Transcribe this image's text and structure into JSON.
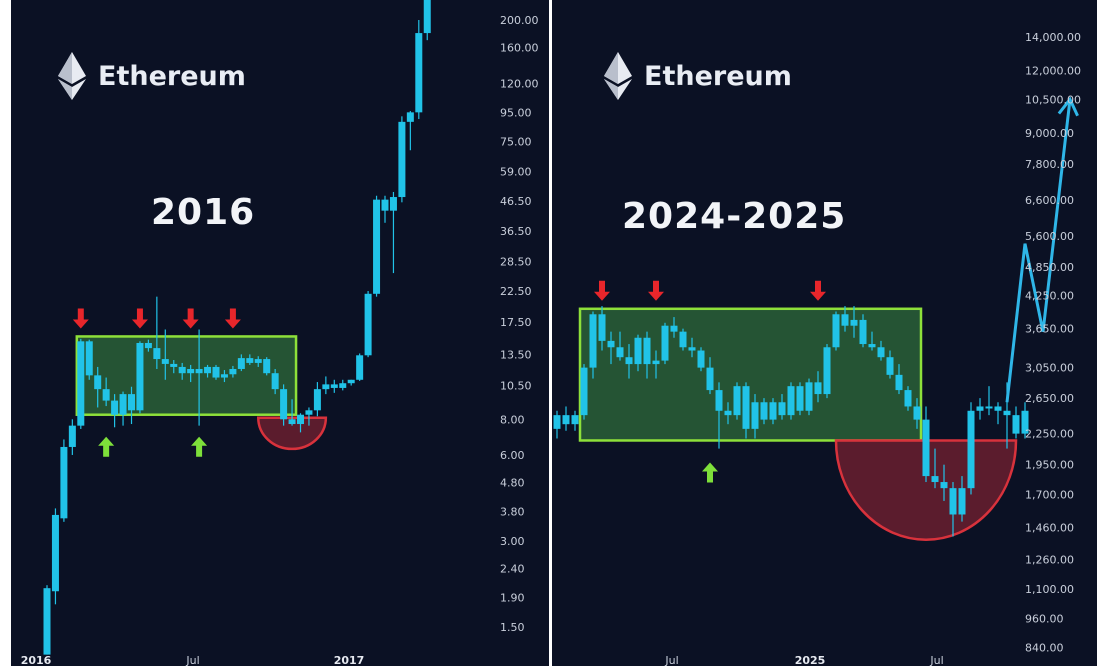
{
  "colors": {
    "background": "#0b1124",
    "candle_up": "#21c3e8",
    "candle_down": "#21c3e8",
    "range_box_fill": "#2f6b3a",
    "range_box_stroke": "#8ee03a",
    "resistance_arrow": "#e8262b",
    "support_arrow": "#7ee03a",
    "cup_fill": "#6a1e2f",
    "cup_stroke": "#d8323c",
    "projection_line": "#2fb6e8"
  },
  "chart_data": [
    {
      "type": "candlestick",
      "title": "2016",
      "brand": "Ethereum",
      "brand_icon": "ethereum-logo-icon",
      "yscale": "log",
      "ylim": [
        1.35,
        235
      ],
      "ytick_labels": [
        "200.00",
        "160.00",
        "120.00",
        "95.00",
        "75.00",
        "59.00",
        "46.50",
        "36.50",
        "28.50",
        "22.50",
        "17.50",
        "13.50",
        "10.50",
        "8.00",
        "6.00",
        "4.80",
        "3.80",
        "3.00",
        "2.40",
        "1.90",
        "1.50"
      ],
      "xtick_labels": [
        "2016",
        "Jul",
        "2017"
      ],
      "xtick_bold": [
        "2016",
        "2017"
      ],
      "candles": [
        {
          "o": 1.2,
          "h": 2.1,
          "l": 1.2,
          "c": 2.05
        },
        {
          "o": 2.0,
          "h": 3.9,
          "l": 1.8,
          "c": 3.7
        },
        {
          "o": 3.6,
          "h": 6.8,
          "l": 3.5,
          "c": 6.4
        },
        {
          "o": 6.4,
          "h": 8.0,
          "l": 6.0,
          "c": 7.6
        },
        {
          "o": 7.6,
          "h": 15.3,
          "l": 7.4,
          "c": 15.0
        },
        {
          "o": 15.0,
          "h": 15.2,
          "l": 11.0,
          "c": 11.4
        },
        {
          "o": 11.4,
          "h": 12.2,
          "l": 8.8,
          "c": 10.2
        },
        {
          "o": 10.2,
          "h": 11.2,
          "l": 8.9,
          "c": 9.3
        },
        {
          "o": 9.3,
          "h": 9.8,
          "l": 7.5,
          "c": 8.3
        },
        {
          "o": 8.3,
          "h": 10.0,
          "l": 7.6,
          "c": 9.8
        },
        {
          "o": 9.8,
          "h": 10.4,
          "l": 7.7,
          "c": 8.6
        },
        {
          "o": 8.6,
          "h": 15.0,
          "l": 8.4,
          "c": 14.8
        },
        {
          "o": 14.8,
          "h": 15.2,
          "l": 13.8,
          "c": 14.2
        },
        {
          "o": 14.2,
          "h": 21.5,
          "l": 12.0,
          "c": 13.0
        },
        {
          "o": 13.0,
          "h": 16.5,
          "l": 11.0,
          "c": 12.5
        },
        {
          "o": 12.5,
          "h": 12.9,
          "l": 11.6,
          "c": 12.2
        },
        {
          "o": 12.2,
          "h": 12.6,
          "l": 11.0,
          "c": 11.6
        },
        {
          "o": 11.6,
          "h": 12.4,
          "l": 10.8,
          "c": 12.0
        },
        {
          "o": 12.0,
          "h": 16.5,
          "l": 7.6,
          "c": 11.6
        },
        {
          "o": 11.6,
          "h": 12.4,
          "l": 11.2,
          "c": 12.2
        },
        {
          "o": 12.2,
          "h": 12.4,
          "l": 11.0,
          "c": 11.2
        },
        {
          "o": 11.2,
          "h": 11.9,
          "l": 10.8,
          "c": 11.5
        },
        {
          "o": 11.5,
          "h": 12.3,
          "l": 11.2,
          "c": 12.0
        },
        {
          "o": 12.0,
          "h": 13.5,
          "l": 11.8,
          "c": 13.1
        },
        {
          "o": 13.1,
          "h": 13.5,
          "l": 12.4,
          "c": 12.6
        },
        {
          "o": 12.6,
          "h": 13.3,
          "l": 12.2,
          "c": 13.0
        },
        {
          "o": 13.0,
          "h": 13.2,
          "l": 11.4,
          "c": 11.6
        },
        {
          "o": 11.6,
          "h": 12.0,
          "l": 9.8,
          "c": 10.2
        },
        {
          "o": 10.2,
          "h": 10.6,
          "l": 7.6,
          "c": 8.0
        },
        {
          "o": 8.0,
          "h": 9.4,
          "l": 7.6,
          "c": 7.7
        },
        {
          "o": 7.7,
          "h": 8.4,
          "l": 7.2,
          "c": 8.3
        },
        {
          "o": 8.3,
          "h": 8.8,
          "l": 7.6,
          "c": 8.6
        },
        {
          "o": 8.6,
          "h": 10.8,
          "l": 8.2,
          "c": 10.2
        },
        {
          "o": 10.2,
          "h": 11.3,
          "l": 9.8,
          "c": 10.6
        },
        {
          "o": 10.6,
          "h": 11.0,
          "l": 9.9,
          "c": 10.3
        },
        {
          "o": 10.3,
          "h": 11.0,
          "l": 10.1,
          "c": 10.7
        },
        {
          "o": 10.7,
          "h": 11.0,
          "l": 10.5,
          "c": 11.0
        },
        {
          "o": 11.0,
          "h": 13.6,
          "l": 10.9,
          "c": 13.4
        },
        {
          "o": 13.4,
          "h": 22.5,
          "l": 13.2,
          "c": 22.0
        },
        {
          "o": 22.0,
          "h": 48.5,
          "l": 21.5,
          "c": 47.0
        },
        {
          "o": 47.0,
          "h": 48.5,
          "l": 39.0,
          "c": 43.0
        },
        {
          "o": 43.0,
          "h": 50.0,
          "l": 26.0,
          "c": 48.0
        },
        {
          "o": 48.0,
          "h": 92.0,
          "l": 46.0,
          "c": 88.0
        },
        {
          "o": 88.0,
          "h": 96.0,
          "l": 70.0,
          "c": 95.0
        },
        {
          "o": 95.0,
          "h": 200.0,
          "l": 90.0,
          "c": 180.0
        },
        {
          "o": 180.0,
          "h": 420.0,
          "l": 170.0,
          "c": 400.0
        }
      ],
      "annotations": {
        "range_box": {
          "x_from": 4,
          "x_to": 29,
          "y_from": 8.3,
          "y_to": 15.6
        },
        "resistance_arrows_at": [
          4,
          11,
          17,
          22
        ],
        "support_arrows_at": [
          7,
          18
        ],
        "cup": {
          "x_from": 25,
          "x_to": 33,
          "top": 8.1,
          "bottom": 6.3
        }
      }
    },
    {
      "type": "candlestick",
      "title": "2024-2025",
      "brand": "Ethereum",
      "brand_icon": "ethereum-logo-icon",
      "yscale": "log",
      "ylim": [
        830,
        16000
      ],
      "ytick_labels": [
        "14,000.00",
        "12,000.00",
        "10,500.00",
        "9,000.00",
        "7,800.00",
        "6,600.00",
        "5,600.00",
        "4,850.00",
        "4,250.00",
        "3,650.00",
        "3,050.00",
        "2,650.00",
        "2,250.00",
        "1,950.00",
        "1,700.00",
        "1,460.00",
        "1,260.00",
        "1,100.00",
        "960.00",
        "840.00"
      ],
      "xtick_labels": [
        "Jul",
        "2025",
        "Jul"
      ],
      "xtick_bold": [
        "2025"
      ],
      "candles": [
        {
          "o": 2300,
          "h": 2500,
          "l": 2200,
          "c": 2450
        },
        {
          "o": 2450,
          "h": 2550,
          "l": 2280,
          "c": 2350
        },
        {
          "o": 2350,
          "h": 2500,
          "l": 2280,
          "c": 2450
        },
        {
          "o": 2450,
          "h": 3100,
          "l": 2400,
          "c": 3050
        },
        {
          "o": 3050,
          "h": 3950,
          "l": 2900,
          "c": 3900
        },
        {
          "o": 3900,
          "h": 4050,
          "l": 3300,
          "c": 3450
        },
        {
          "o": 3450,
          "h": 3600,
          "l": 3100,
          "c": 3350
        },
        {
          "o": 3350,
          "h": 3600,
          "l": 3150,
          "c": 3200
        },
        {
          "o": 3200,
          "h": 3400,
          "l": 2900,
          "c": 3100
        },
        {
          "o": 3100,
          "h": 3550,
          "l": 3000,
          "c": 3500
        },
        {
          "o": 3500,
          "h": 3600,
          "l": 2900,
          "c": 3100
        },
        {
          "o": 3100,
          "h": 3300,
          "l": 2900,
          "c": 3150
        },
        {
          "o": 3150,
          "h": 3750,
          "l": 3100,
          "c": 3700
        },
        {
          "o": 3700,
          "h": 3850,
          "l": 3500,
          "c": 3600
        },
        {
          "o": 3600,
          "h": 3650,
          "l": 3300,
          "c": 3350
        },
        {
          "o": 3350,
          "h": 3500,
          "l": 3200,
          "c": 3300
        },
        {
          "o": 3300,
          "h": 3350,
          "l": 3000,
          "c": 3050
        },
        {
          "o": 3050,
          "h": 3200,
          "l": 2700,
          "c": 2750
        },
        {
          "o": 2750,
          "h": 2850,
          "l": 2100,
          "c": 2500
        },
        {
          "o": 2500,
          "h": 2600,
          "l": 2350,
          "c": 2450
        },
        {
          "o": 2450,
          "h": 2850,
          "l": 2400,
          "c": 2800
        },
        {
          "o": 2800,
          "h": 2850,
          "l": 2200,
          "c": 2300
        },
        {
          "o": 2300,
          "h": 2700,
          "l": 2200,
          "c": 2600
        },
        {
          "o": 2600,
          "h": 2650,
          "l": 2350,
          "c": 2400
        },
        {
          "o": 2400,
          "h": 2650,
          "l": 2350,
          "c": 2600
        },
        {
          "o": 2600,
          "h": 2700,
          "l": 2400,
          "c": 2450
        },
        {
          "o": 2450,
          "h": 2850,
          "l": 2400,
          "c": 2800
        },
        {
          "o": 2800,
          "h": 2850,
          "l": 2450,
          "c": 2500
        },
        {
          "o": 2500,
          "h": 2900,
          "l": 2450,
          "c": 2850
        },
        {
          "o": 2850,
          "h": 3000,
          "l": 2600,
          "c": 2700
        },
        {
          "o": 2700,
          "h": 3400,
          "l": 2650,
          "c": 3350
        },
        {
          "o": 3350,
          "h": 3950,
          "l": 3300,
          "c": 3900
        },
        {
          "o": 3900,
          "h": 4050,
          "l": 3600,
          "c": 3700
        },
        {
          "o": 3700,
          "h": 4050,
          "l": 3500,
          "c": 3800
        },
        {
          "o": 3800,
          "h": 3900,
          "l": 3350,
          "c": 3400
        },
        {
          "o": 3400,
          "h": 3600,
          "l": 3300,
          "c": 3350
        },
        {
          "o": 3350,
          "h": 3450,
          "l": 3150,
          "c": 3200
        },
        {
          "o": 3200,
          "h": 3300,
          "l": 2900,
          "c": 2950
        },
        {
          "o": 2950,
          "h": 3100,
          "l": 2700,
          "c": 2750
        },
        {
          "o": 2750,
          "h": 2800,
          "l": 2500,
          "c": 2550
        },
        {
          "o": 2550,
          "h": 2650,
          "l": 2300,
          "c": 2400
        },
        {
          "o": 2400,
          "h": 2550,
          "l": 1800,
          "c": 1850
        },
        {
          "o": 1850,
          "h": 2100,
          "l": 1750,
          "c": 1800
        },
        {
          "o": 1800,
          "h": 1950,
          "l": 1650,
          "c": 1750
        },
        {
          "o": 1750,
          "h": 1800,
          "l": 1400,
          "c": 1550
        },
        {
          "o": 1550,
          "h": 1850,
          "l": 1500,
          "c": 1750
        },
        {
          "o": 1750,
          "h": 2600,
          "l": 1700,
          "c": 2500
        },
        {
          "o": 2500,
          "h": 2650,
          "l": 2400,
          "c": 2550
        },
        {
          "o": 2550,
          "h": 2800,
          "l": 2450,
          "c": 2550
        },
        {
          "o": 2550,
          "h": 2600,
          "l": 2350,
          "c": 2500
        },
        {
          "o": 2500,
          "h": 2850,
          "l": 2100,
          "c": 2450
        },
        {
          "o": 2450,
          "h": 2550,
          "l": 2200,
          "c": 2250
        },
        {
          "o": 2250,
          "h": 2600,
          "l": 2200,
          "c": 2500
        }
      ],
      "annotations": {
        "range_box": {
          "x_from": 3,
          "x_to": 40,
          "y_from": 2180,
          "y_to": 4000
        },
        "resistance_arrows_at": [
          5,
          11,
          29
        ],
        "support_arrows_at": [
          17
        ],
        "cup": {
          "x_from": 31,
          "x_to": 51,
          "top": 2180,
          "bottom": 1380
        },
        "projection": [
          [
            50,
            2600
          ],
          [
            52,
            5400
          ],
          [
            54,
            3600
          ],
          [
            57,
            10500
          ]
        ]
      }
    }
  ]
}
